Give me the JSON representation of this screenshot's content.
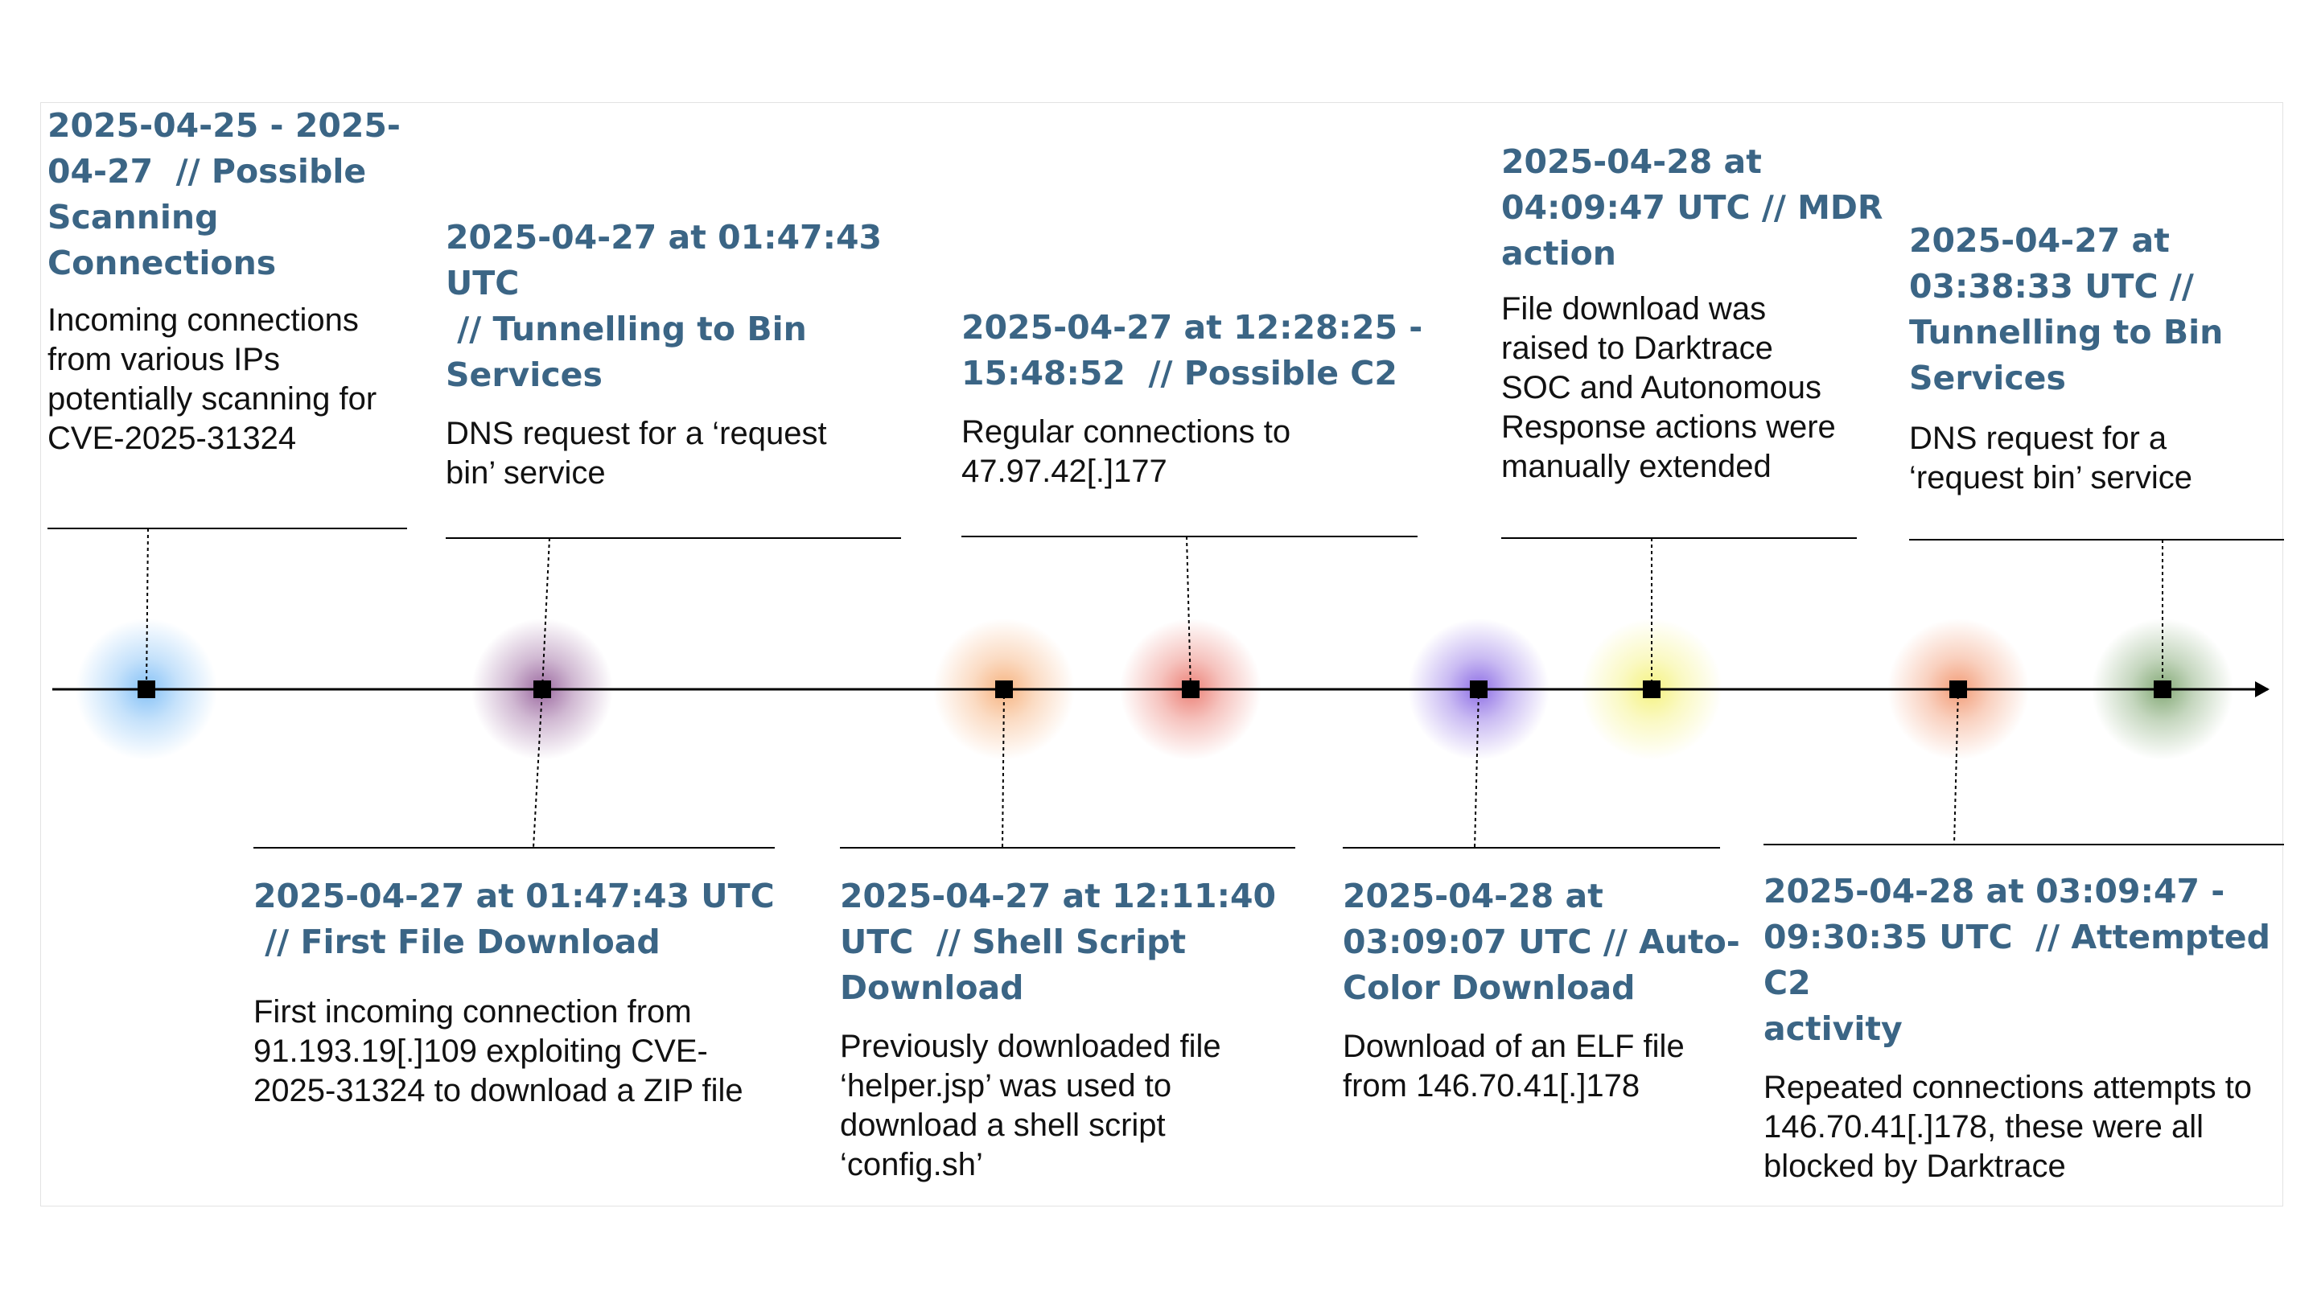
{
  "colors": {
    "title": "#3b6585",
    "text": "#111111",
    "line": "#000000"
  },
  "events_top": [
    {
      "title": "2025-04-25 - 2025-\n04-27  // Possible\nScanning\nConnections",
      "description": "Incoming connections\nfrom various IPs\npotentially scanning for\nCVE-2025-31324",
      "glow": "#6fb6f5"
    },
    {
      "title": "2025-04-27 at 01:47:43\nUTC\n // Tunnelling to Bin\nServices",
      "description": "DNS request for a ‘request\nbin’ service",
      "glow": "#8a4f8f"
    },
    {
      "title": "2025-04-27 at 12:28:25 -\n15:48:52  // Possible C2",
      "description": "Regular connections to\n47.97.42[.]177",
      "glow": "#e86a5e"
    },
    {
      "title": "2025-04-28 at\n04:09:47 UTC // MDR\naction",
      "description": "File download was\nraised to Darktrace\nSOC and Autonomous\nResponse actions were\nmanually extended",
      "glow": "#f3f06a"
    },
    {
      "title": "2025-04-27 at\n03:38:33 UTC //\nTunnelling to Bin\nServices",
      "description": "DNS request for a\n‘request bin’ service",
      "glow": "#6e9a5e"
    }
  ],
  "events_bottom": [
    {
      "title": "2025-04-27 at 01:47:43 UTC\n // First File Download",
      "description": "First incoming connection from\n91.193.19[.]109 exploiting CVE-\n2025-31324 to download a ZIP file",
      "glow": "#8a4f8f"
    },
    {
      "title": "2025-04-27 at 12:11:40\nUTC  // Shell Script\nDownload",
      "description": "Previously downloaded file\n‘helper.jsp’ was used to\ndownload a shell script\n‘config.sh’",
      "glow": "#f5a66a"
    },
    {
      "title": "2025-04-28 at\n03:09:07 UTC // Auto-\nColor Download",
      "description": "Download of an ELF file\nfrom 146.70.41[.]178",
      "glow": "#7a55e0"
    },
    {
      "title": "2025-04-28 at 03:09:47 -\n09:30:35 UTC  // Attempted C2\nactivity",
      "description": "Repeated connections attempts to\n146.70.41[.]178, these were all\nblocked by Darktrace",
      "glow": "#f08a5e"
    }
  ]
}
